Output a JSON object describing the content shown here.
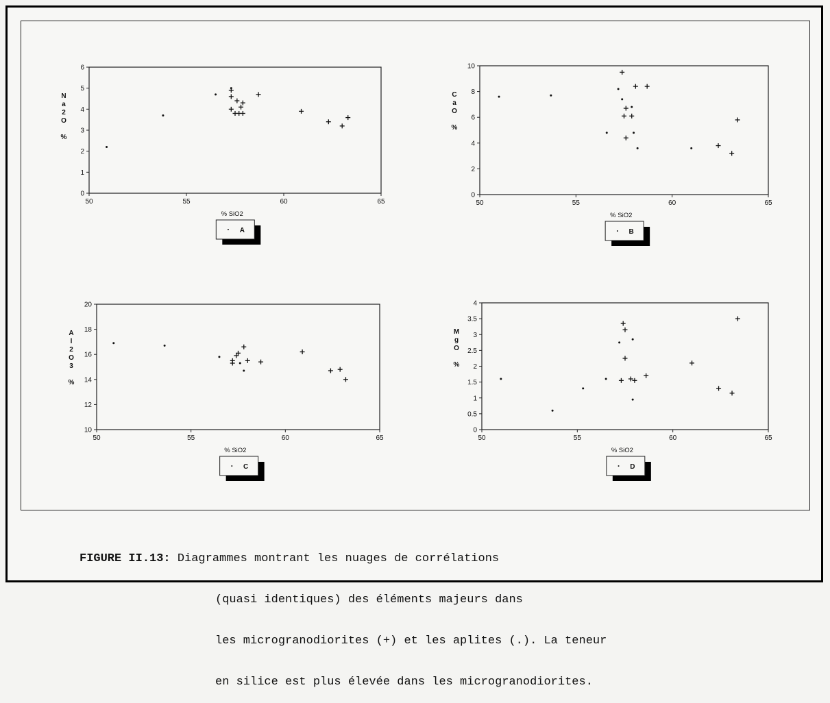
{
  "chart_data": [
    {
      "type": "scatter",
      "panel": "A",
      "xlabel": "% SiO2",
      "ylabel": [
        "N",
        "a",
        "2",
        "O",
        "",
        "%"
      ],
      "xlim": [
        50,
        65
      ],
      "ylim": [
        0,
        6
      ],
      "xticks": [
        "50",
        "55",
        "60",
        "65"
      ],
      "yticks": [
        "0",
        "1",
        "2",
        "3",
        "4",
        "5",
        "6"
      ],
      "legend_label": "A",
      "legend_marker": "·",
      "series": [
        {
          "marker": "plus",
          "x": [
            57.3,
            57.3,
            57.6,
            57.9,
            57.8,
            57.3,
            57.5,
            57.7,
            57.9,
            58.7,
            60.9,
            62.3,
            63.0,
            63.3
          ],
          "y": [
            4.9,
            4.6,
            4.4,
            4.3,
            4.1,
            4.0,
            3.8,
            3.8,
            3.8,
            4.7,
            3.9,
            3.4,
            3.2,
            3.6
          ]
        },
        {
          "marker": "dot",
          "x": [
            50.9,
            53.8,
            56.5,
            57.3
          ],
          "y": [
            2.2,
            3.7,
            4.7,
            5.0
          ]
        }
      ]
    },
    {
      "type": "scatter",
      "panel": "B",
      "xlabel": "% SiO2",
      "ylabel": [
        "C",
        "a",
        "O",
        "",
        "%"
      ],
      "xlim": [
        50,
        65
      ],
      "ylim": [
        0,
        10
      ],
      "xticks": [
        "50",
        "55",
        "60",
        "65"
      ],
      "yticks": [
        "0",
        "2",
        "4",
        "6",
        "8",
        "10"
      ],
      "legend_label": "B",
      "legend_marker": "·",
      "series": [
        {
          "marker": "plus",
          "x": [
            57.4,
            58.1,
            58.7,
            57.6,
            57.5,
            57.9,
            57.6,
            63.4,
            62.4,
            63.1
          ],
          "y": [
            9.5,
            8.4,
            8.4,
            6.7,
            6.1,
            6.1,
            4.4,
            5.8,
            3.8,
            3.2
          ]
        },
        {
          "marker": "dot",
          "x": [
            51.0,
            53.7,
            56.6,
            57.2,
            57.9,
            58.0,
            58.2,
            61.0,
            57.4
          ],
          "y": [
            7.6,
            7.7,
            4.8,
            8.2,
            6.8,
            4.8,
            3.6,
            3.6,
            7.4
          ]
        }
      ]
    },
    {
      "type": "scatter",
      "panel": "C",
      "xlabel": "% SiO2",
      "ylabel": [
        "A",
        "l",
        "2",
        "O",
        "3",
        "",
        "%"
      ],
      "xlim": [
        50,
        65
      ],
      "ylim": [
        10,
        20
      ],
      "xticks": [
        "50",
        "55",
        "60",
        "65"
      ],
      "yticks": [
        "10",
        "12",
        "14",
        "16",
        "18",
        "20"
      ],
      "legend_label": "C",
      "legend_marker": "·",
      "series": [
        {
          "marker": "plus",
          "x": [
            57.5,
            57.4,
            57.2,
            57.2,
            57.8,
            58.0,
            58.7,
            60.9,
            62.4,
            62.9,
            63.2
          ],
          "y": [
            16.1,
            15.9,
            15.5,
            15.3,
            16.6,
            15.5,
            15.4,
            16.2,
            14.7,
            14.8,
            14.0
          ]
        },
        {
          "marker": "dot",
          "x": [
            50.9,
            53.6,
            56.5,
            57.6,
            57.8
          ],
          "y": [
            16.9,
            16.7,
            15.8,
            15.3,
            14.7
          ]
        }
      ]
    },
    {
      "type": "scatter",
      "panel": "D",
      "xlabel": "% SiO2",
      "ylabel": [
        "M",
        "g",
        "O",
        "",
        "%"
      ],
      "xlim": [
        50,
        65
      ],
      "ylim": [
        0,
        4
      ],
      "xticks": [
        "50",
        "55",
        "60",
        "65"
      ],
      "yticks": [
        "0",
        "0.5",
        "1",
        "1.5",
        "2",
        "2.5",
        "3",
        "3.5",
        "4"
      ],
      "legend_label": "D",
      "legend_marker": "·",
      "series": [
        {
          "marker": "plus",
          "x": [
            57.4,
            57.5,
            57.5,
            57.3,
            57.8,
            58.0,
            58.6,
            61.0,
            62.4,
            63.1,
            63.4
          ],
          "y": [
            3.35,
            3.15,
            2.25,
            1.55,
            1.6,
            1.55,
            1.7,
            2.1,
            1.3,
            1.15,
            3.5
          ]
        },
        {
          "marker": "dot",
          "x": [
            51.0,
            53.7,
            55.3,
            56.5,
            57.2,
            57.9,
            57.9
          ],
          "y": [
            1.6,
            0.6,
            1.3,
            1.6,
            2.75,
            2.85,
            0.95
          ]
        }
      ]
    }
  ],
  "caption": {
    "label": "FIGURE II.13:",
    "line1": " Diagrammes montrant les nuages de corrélations",
    "line2": "(quasi identiques) des éléments majeurs dans",
    "line3": "les microgranodiorites (+) et les aplites (.). La teneur",
    "line4": "en silice est plus élevée dans les microgranodiorites."
  }
}
